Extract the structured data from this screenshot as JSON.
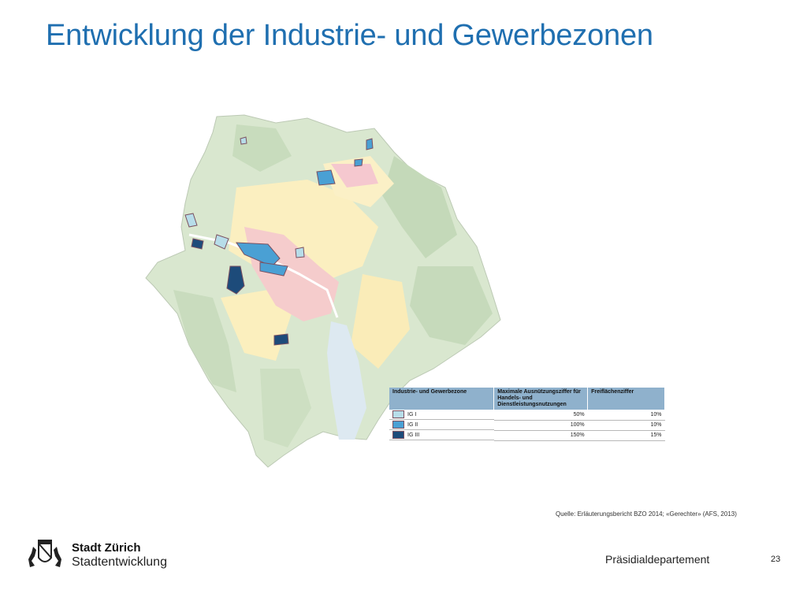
{
  "slide": {
    "title": "Entwicklung der Industrie- und Gewerbezonen",
    "source": "Quelle: Erläuterungsbericht BZO 2014; «Gerechter» (AFS, 2013)",
    "department": "Präsidialdepartement",
    "page_number": "23"
  },
  "branding": {
    "line1": "Stadt Zürich",
    "line2": "Stadtentwicklung"
  },
  "legend": {
    "headers": [
      "Industrie- und Gewerbezone",
      "Maximale Ausnützungsziffer für Handels- und Dienstleistungsnutzungen",
      "Freiflächenziffer"
    ],
    "rows": [
      {
        "zone": "IG I",
        "ausnuetzung": "50%",
        "freiflaeche": "10%",
        "color": "#b7dde9"
      },
      {
        "zone": "IG II",
        "ausnuetzung": "100%",
        "freiflaeche": "10%",
        "color": "#4aa0d4"
      },
      {
        "zone": "IG III",
        "ausnuetzung": "150%",
        "freiflaeche": "15%",
        "color": "#1d4b7a"
      }
    ]
  },
  "colors": {
    "title": "#1f6fb0",
    "forest": "#cfe0c6",
    "residential": "#fbf0c2",
    "center": "#f6cccc",
    "lake": "#dde9f1"
  }
}
